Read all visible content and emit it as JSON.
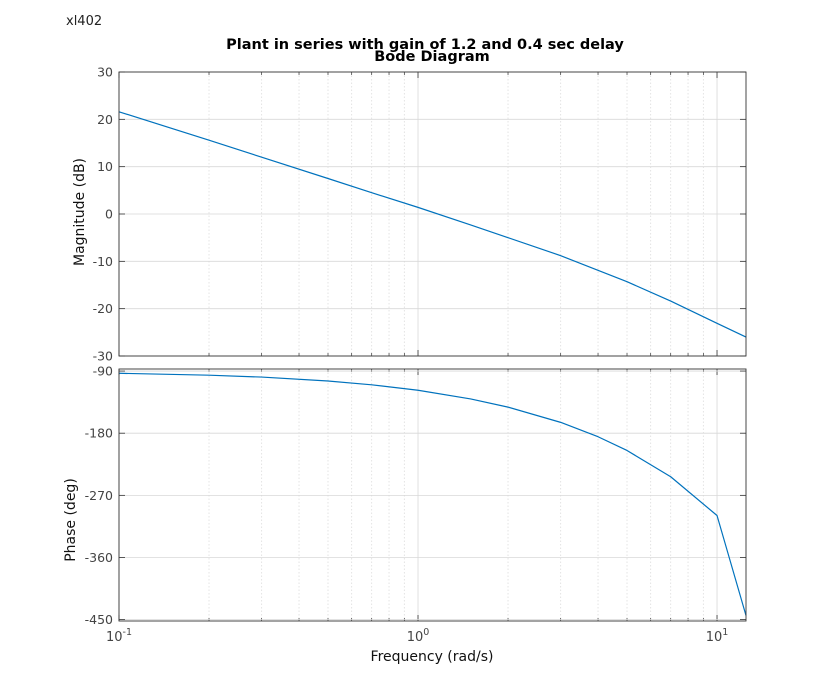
{
  "figure": {
    "corner_label": "xl402",
    "title": "Plant in series with gain of 1.2 and 0.4 sec delay",
    "subtitle": "Bode Diagram"
  },
  "chart_data": [
    {
      "type": "line",
      "name": "magnitude",
      "ylabel": "Magnitude (dB)",
      "xscale": "log",
      "xlim": [
        0.1,
        12.5
      ],
      "ylim": [
        -30,
        30
      ],
      "yticks": [
        -30,
        -20,
        -10,
        0,
        10,
        20,
        30
      ],
      "grid": true,
      "color": "#0072bd",
      "series": [
        {
          "x": [
            0.1,
            0.2,
            0.3,
            0.5,
            0.7,
            1,
            1.5,
            2,
            3,
            5,
            7,
            10,
            12.5
          ],
          "values": [
            21.6,
            15.6,
            12.0,
            7.5,
            4.5,
            1.4,
            -2.3,
            -5.0,
            -8.8,
            -14.3,
            -18.4,
            -23.1,
            -26.0
          ]
        }
      ]
    },
    {
      "type": "line",
      "name": "phase",
      "ylabel": "Phase (deg)",
      "xlabel": "Frequency  (rad/s)",
      "xscale": "log",
      "xlim": [
        0.1,
        12.5
      ],
      "ylim": [
        -452,
        -87
      ],
      "yticks": [
        -90,
        -180,
        -270,
        -360,
        -450
      ],
      "xticks": [
        {
          "base": "10",
          "exp": "-1",
          "value": 0.1
        },
        {
          "base": "10",
          "exp": "0",
          "value": 1
        },
        {
          "base": "10",
          "exp": "1",
          "value": 10
        }
      ],
      "grid": true,
      "color": "#0072bd",
      "series": [
        {
          "x": [
            0.1,
            0.2,
            0.3,
            0.5,
            0.7,
            1,
            1.5,
            2,
            3,
            4,
            5,
            7,
            10,
            12.5
          ],
          "values": [
            -93.2,
            -96.0,
            -98.7,
            -104.4,
            -109.9,
            -117.8,
            -130.4,
            -142.2,
            -164.3,
            -185.1,
            -205.0,
            -243.1,
            -299.2,
            -444.0
          ]
        }
      ]
    }
  ]
}
